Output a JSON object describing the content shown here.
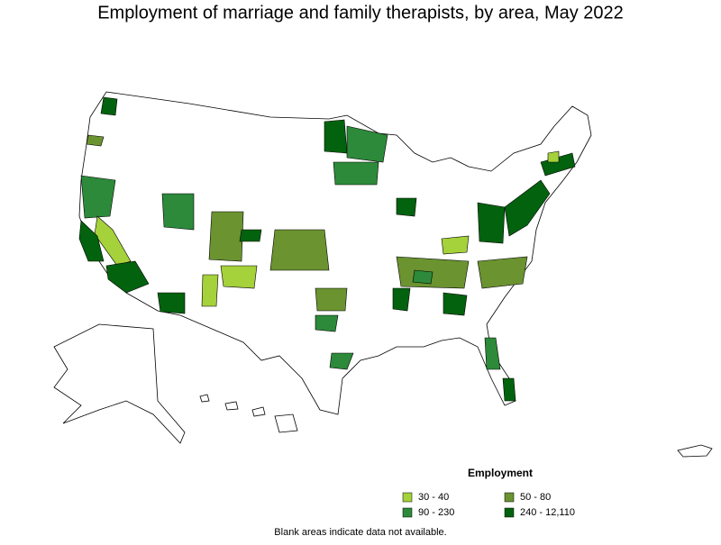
{
  "title": "Employment of marriage and family therapists, by area, May 2022",
  "legend": {
    "title": "Employment",
    "items": [
      {
        "label": "30 - 40",
        "color": "#a5d13a"
      },
      {
        "label": "50 - 80",
        "color": "#6b9330"
      },
      {
        "label": "90 - 230",
        "color": "#2c8a3a"
      },
      {
        "label": "240 - 12,110",
        "color": "#02620e"
      }
    ]
  },
  "note": "Blank areas indicate data not available."
}
